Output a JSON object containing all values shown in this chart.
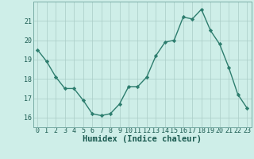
{
  "x": [
    0,
    1,
    2,
    3,
    4,
    5,
    6,
    7,
    8,
    9,
    10,
    11,
    12,
    13,
    14,
    15,
    16,
    17,
    18,
    19,
    20,
    21,
    22,
    23
  ],
  "y": [
    19.5,
    18.9,
    18.1,
    17.5,
    17.5,
    16.9,
    16.2,
    16.1,
    16.2,
    16.7,
    17.6,
    17.6,
    18.1,
    19.2,
    19.9,
    20.0,
    21.2,
    21.1,
    21.6,
    20.5,
    19.8,
    18.6,
    17.2,
    16.5
  ],
  "line_color": "#2d7d6e",
  "marker": "D",
  "marker_size": 2.2,
  "bg_color": "#ceeee8",
  "grid_color": "#aaccc6",
  "xlabel": "Humidex (Indice chaleur)",
  "ylim": [
    15.5,
    22.0
  ],
  "xlim": [
    -0.5,
    23.5
  ],
  "yticks": [
    16,
    17,
    18,
    19,
    20,
    21
  ],
  "xticks": [
    0,
    1,
    2,
    3,
    4,
    5,
    6,
    7,
    8,
    9,
    10,
    11,
    12,
    13,
    14,
    15,
    16,
    17,
    18,
    19,
    20,
    21,
    22,
    23
  ],
  "tick_fontsize": 6.0,
  "xlabel_fontsize": 7.5,
  "line_width": 1.0
}
